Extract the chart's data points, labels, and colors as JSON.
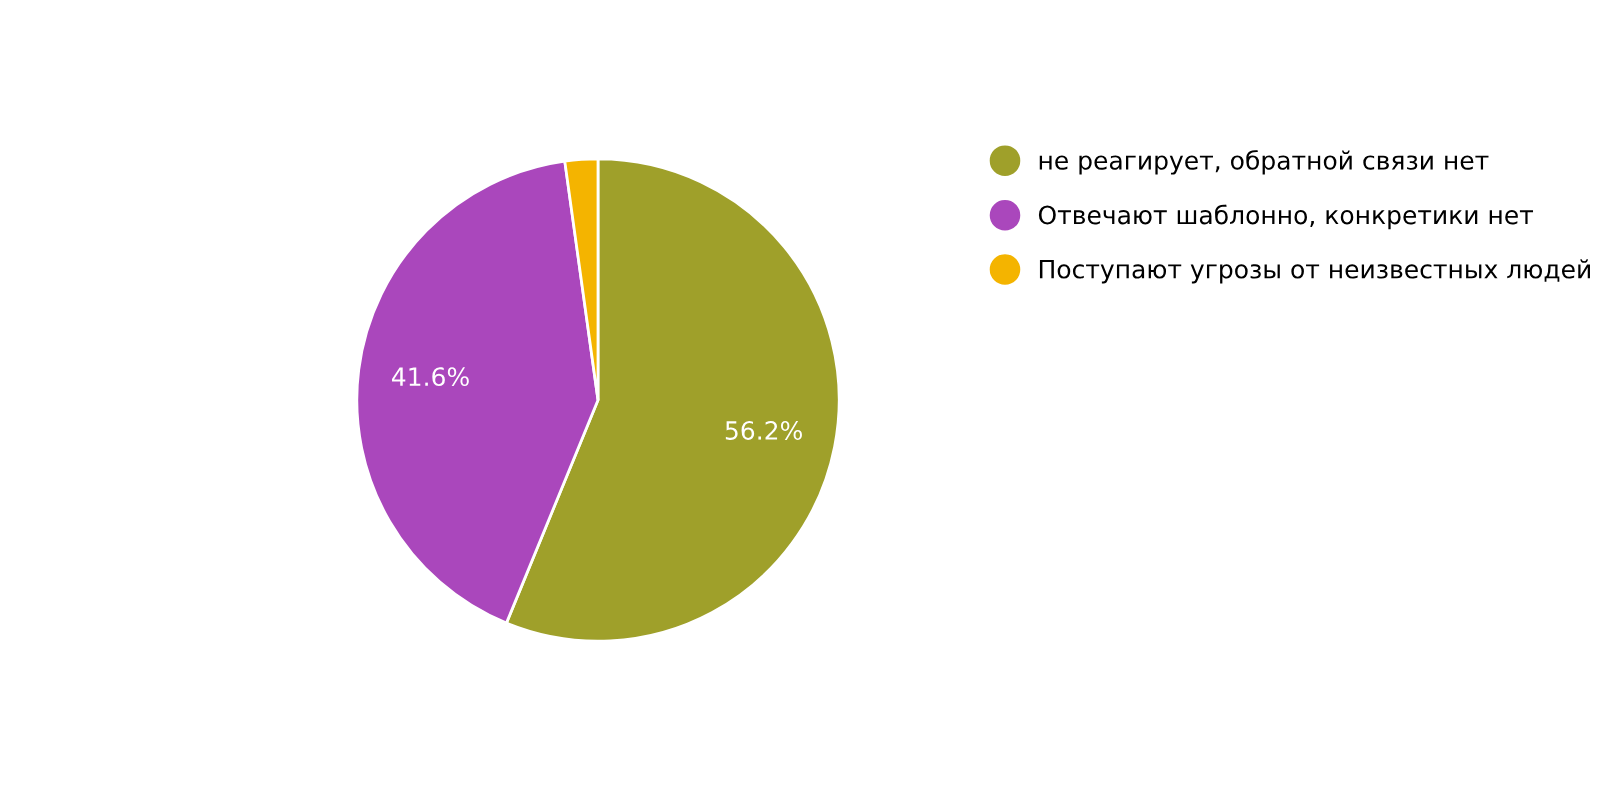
{
  "chart_data": {
    "type": "pie",
    "categories": [
      "не реагирует, обратной связи нет",
      "Отвечают шаблонно, конкретики нет",
      "Поступают угрозы от неизвестных людей"
    ],
    "values": [
      56.2,
      41.6,
      2.2
    ],
    "colors": [
      "#9fa02a",
      "#aa47bc",
      "#f4b400"
    ],
    "value_labels": [
      "56.2%",
      "41.6%",
      null
    ],
    "legend": "right"
  }
}
